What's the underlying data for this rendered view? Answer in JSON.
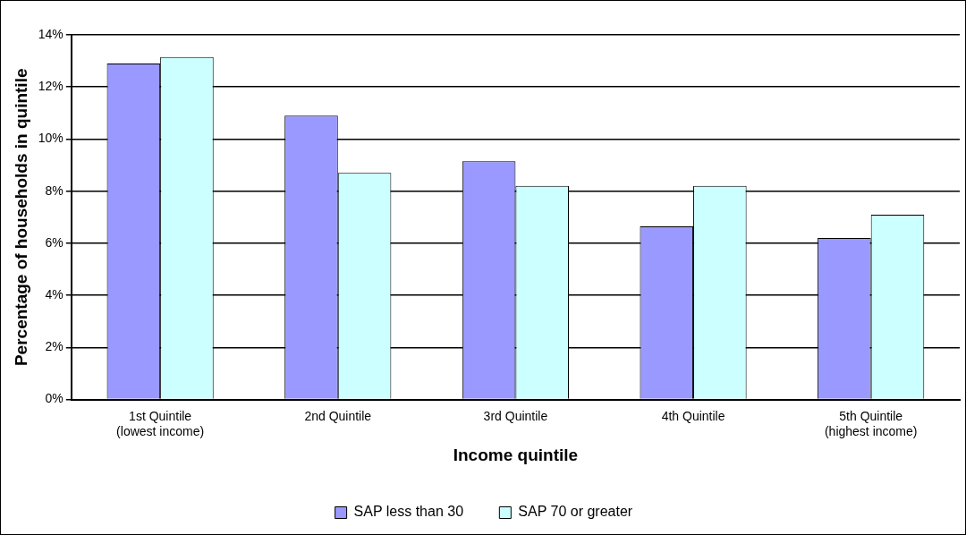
{
  "chart_data": {
    "type": "bar",
    "xlabel": "Income quintile",
    "ylabel": "Percentage of households in quintile",
    "categories": [
      "1st Quintile\n(lowest income)",
      "2nd Quintile",
      "3rd Quintile",
      "4th Quintile",
      "5th Quintile\n(highest income)"
    ],
    "series": [
      {
        "name": "SAP less than 30",
        "color": "#9999ff",
        "values": [
          12.9,
          10.9,
          9.15,
          6.65,
          6.2
        ]
      },
      {
        "name": "SAP 70 or greater",
        "color": "#ccffff",
        "values": [
          13.15,
          8.7,
          8.2,
          8.2,
          7.1
        ]
      }
    ],
    "ylim": [
      0,
      14
    ],
    "yticks": [
      {
        "value": 0,
        "label": "0%"
      },
      {
        "value": 2,
        "label": "2%"
      },
      {
        "value": 4,
        "label": "4%"
      },
      {
        "value": 6,
        "label": "6%"
      },
      {
        "value": 8,
        "label": "8%"
      },
      {
        "value": 10,
        "label": "10%"
      },
      {
        "value": 12,
        "label": "12%"
      },
      {
        "value": 14,
        "label": "14%"
      }
    ],
    "grid": "y",
    "legend": "bottom"
  }
}
